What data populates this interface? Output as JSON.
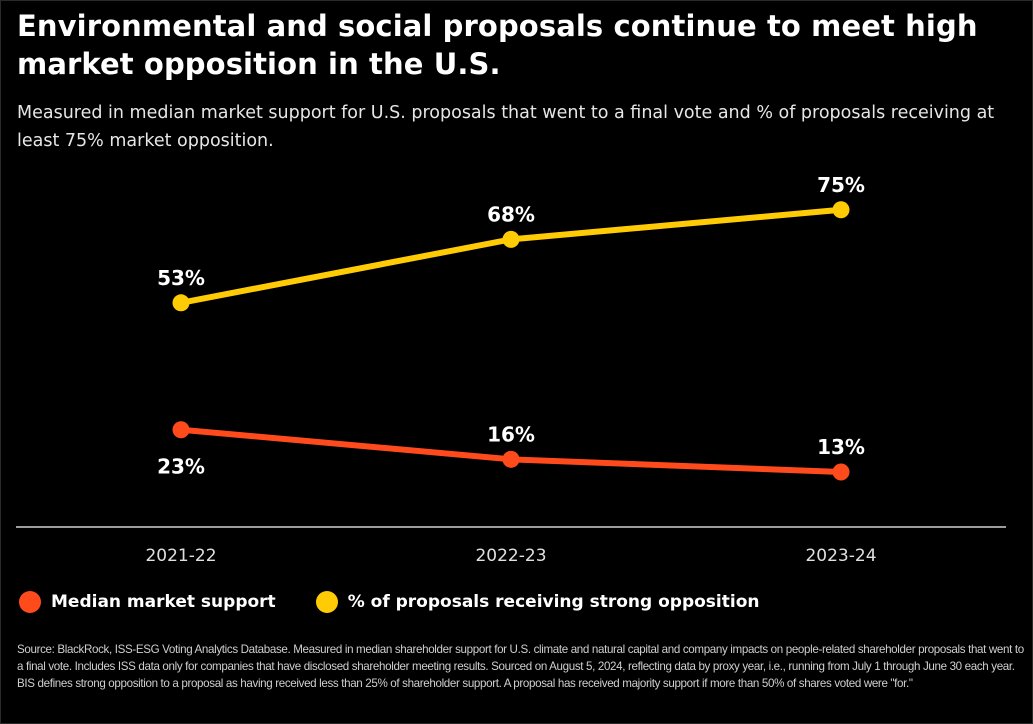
{
  "header": {
    "title": "Environmental and social proposals continue to meet high market opposition in the U.S.",
    "subtitle": "Measured in median market support for U.S. proposals that went to a final vote and % of proposals receiving at least 75% market opposition."
  },
  "footer": {
    "source": "Source: BlackRock, ISS-ESG Voting Analytics Database. Measured in median shareholder support for U.S. climate and natural capital and company impacts on people-related shareholder proposals that went to a final vote. Includes ISS data only for companies that have disclosed shareholder meeting results. Sourced on August 5, 2024, reflecting data by proxy year, i.e., running from July 1 through June 30 each year. BIS defines strong opposition to a proposal as having received less than 25% of shareholder support. A proposal has received majority support if more than 50% of shares voted were \"for.\""
  },
  "chart_data": {
    "type": "line",
    "title": "Environmental and social proposals continue to meet high market opposition in the U.S.",
    "subtitle": "Measured in median market support for U.S. proposals that went to a final vote and % of proposals receiving at least 75% market opposition.",
    "xlabel": "",
    "ylabel": "",
    "categories": [
      "2021-22",
      "2022-23",
      "2023-24"
    ],
    "ylim": [
      0,
      80
    ],
    "grid": false,
    "legend_position": "bottom-left",
    "series": [
      {
        "name": "Median market support",
        "color": "#FF4A1C",
        "values": [
          23,
          16,
          13
        ],
        "labels": [
          "23%",
          "16%",
          "13%"
        ],
        "label_positions": [
          "below",
          "above",
          "above"
        ]
      },
      {
        "name": "% of proposals receiving strong opposition",
        "color": "#FFCB05",
        "values": [
          53,
          68,
          75
        ],
        "labels": [
          "53%",
          "68%",
          "75%"
        ],
        "label_positions": [
          "above",
          "above",
          "above"
        ]
      }
    ]
  }
}
